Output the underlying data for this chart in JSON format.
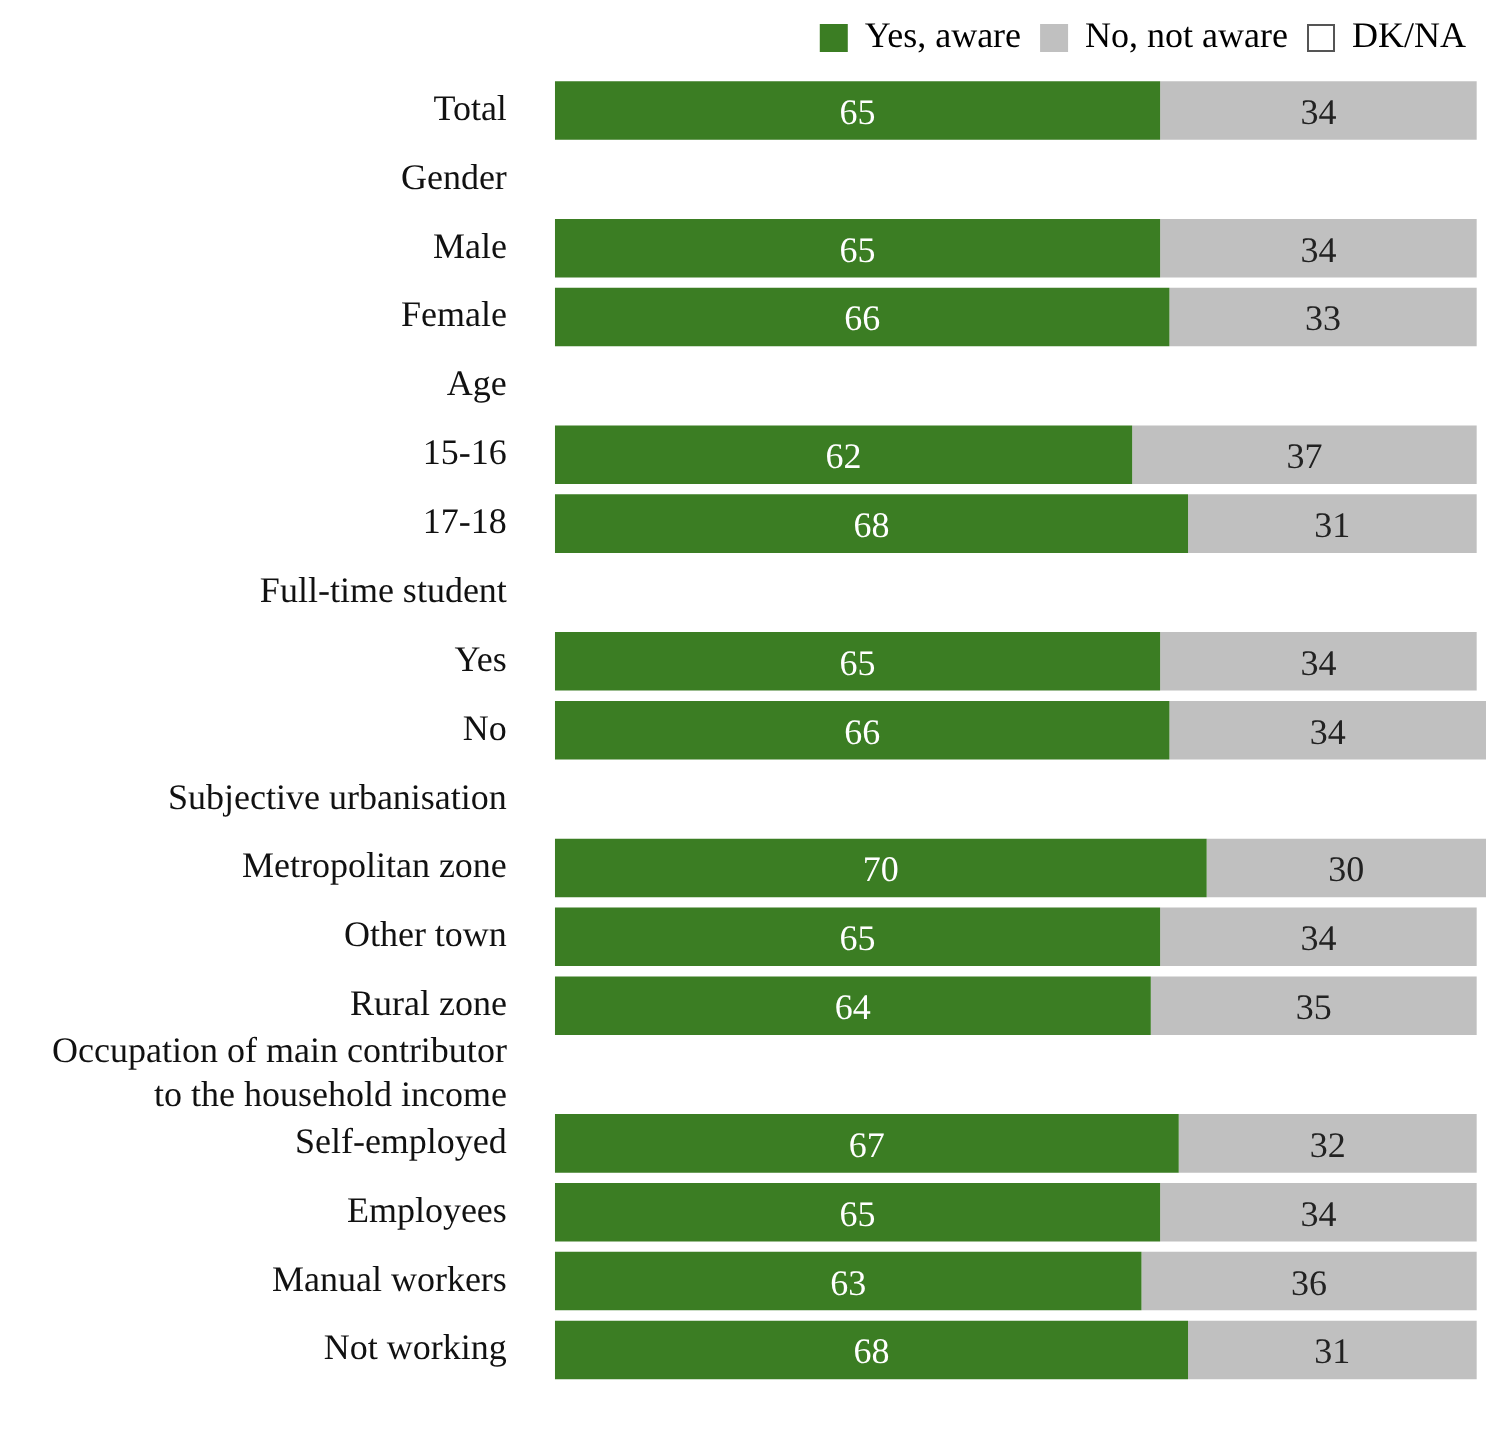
{
  "chart_data": {
    "type": "bar",
    "orientation": "horizontal",
    "stacked": true,
    "legend": "top right",
    "tick_labels": "y",
    "grid": false,
    "xlim": [
      0,
      100
    ],
    "categories": [
      "Total",
      "Gender",
      "Male",
      "Female",
      "Age",
      "15-16",
      "17-18",
      "Full-time student",
      "Yes",
      "No",
      "Subjective urbanisation",
      "Metropolitan zone",
      "Other town",
      "Rural zone",
      "Occupation of main contributor to the household income",
      "Self-employed",
      "Employees",
      "Manual workers",
      "Not working"
    ],
    "series": [
      {
        "name": "Yes, aware",
        "color": "#3b7d23",
        "values": [
          65,
          null,
          65,
          66,
          null,
          62,
          68,
          null,
          65,
          66,
          null,
          70,
          65,
          64,
          null,
          67,
          65,
          63,
          68
        ],
        "value_labels": [
          "65",
          null,
          "65",
          "66",
          null,
          "62",
          "68",
          null,
          "65",
          "66",
          null,
          "70",
          "65",
          "64",
          null,
          "67",
          "65",
          "63",
          "68"
        ]
      },
      {
        "name": "No, not aware",
        "color": "#c0c0c0",
        "values": [
          34,
          null,
          34,
          33,
          null,
          37,
          31,
          null,
          34,
          34,
          null,
          30,
          34,
          35,
          null,
          32,
          34,
          36,
          31
        ],
        "value_labels": [
          "34",
          null,
          "34",
          "33",
          null,
          "37",
          "31",
          null,
          "34",
          "34",
          null,
          "30",
          "34",
          "35",
          null,
          "32",
          "34",
          "36",
          "31"
        ]
      },
      {
        "name": "DK/NA",
        "color": "#ffffff",
        "values": [
          null,
          null,
          null,
          null,
          null,
          null,
          null,
          null,
          null,
          null,
          null,
          null,
          null,
          null,
          null,
          null,
          null,
          null,
          null
        ],
        "value_labels": [
          null,
          null,
          null,
          null,
          null,
          null,
          null,
          null,
          null,
          null,
          null,
          null,
          null,
          null,
          null,
          null,
          null,
          null,
          null
        ]
      }
    ]
  }
}
